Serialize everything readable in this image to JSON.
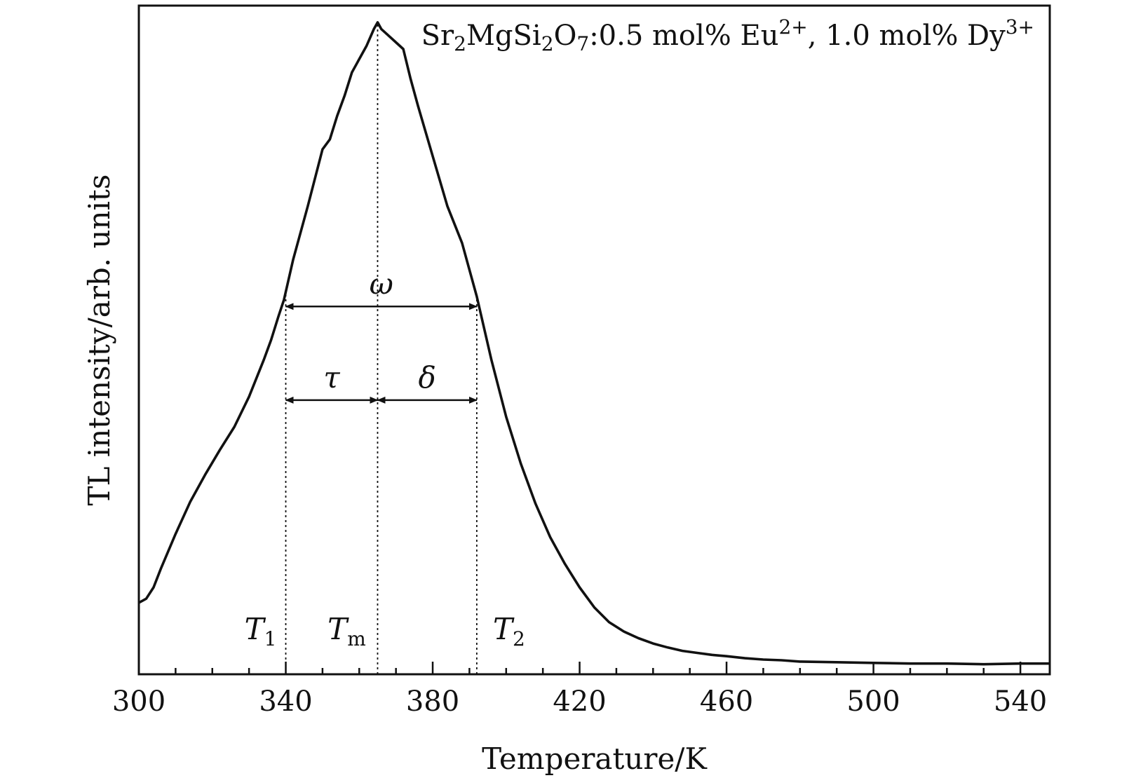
{
  "chart_data": {
    "type": "line",
    "title_parts": [
      "Sr",
      "2",
      "MgSi",
      "2",
      "O",
      "7",
      ":0.5 mol% Eu",
      "2+",
      ", 1.0 mol% Dy",
      "3+"
    ],
    "xlabel": "Temperature/K",
    "ylabel": "TL intensity/arb. units",
    "xlim": [
      300,
      548
    ],
    "ylim": [
      0,
      1.0
    ],
    "xticks": [
      300,
      340,
      380,
      420,
      460,
      500,
      540
    ],
    "minor_step": 10,
    "grid": false,
    "legend": "none",
    "series": [
      {
        "x": [
          300,
          302,
          304,
          306,
          310,
          314,
          318,
          322,
          326,
          330,
          334,
          336,
          338,
          339.5,
          342,
          346,
          350,
          352,
          354,
          356,
          358,
          360,
          362,
          364,
          365,
          366,
          368,
          370,
          372,
          374,
          376,
          380,
          384,
          388,
          392,
          396,
          400,
          404,
          408,
          412,
          416,
          420,
          424,
          428,
          432,
          436,
          440,
          444,
          448,
          452,
          456,
          460,
          465,
          470,
          475,
          480,
          490,
          500,
          510,
          520,
          530,
          540,
          548
        ],
        "y": [
          0.107,
          0.113,
          0.13,
          0.158,
          0.21,
          0.258,
          0.298,
          0.335,
          0.37,
          0.415,
          0.47,
          0.5,
          0.535,
          0.56,
          0.62,
          0.7,
          0.785,
          0.8,
          0.835,
          0.865,
          0.9,
          0.92,
          0.94,
          0.965,
          0.975,
          0.965,
          0.955,
          0.945,
          0.935,
          0.89,
          0.85,
          0.775,
          0.7,
          0.645,
          0.565,
          0.47,
          0.385,
          0.315,
          0.255,
          0.205,
          0.165,
          0.13,
          0.1,
          0.078,
          0.064,
          0.054,
          0.046,
          0.04,
          0.035,
          0.032,
          0.029,
          0.027,
          0.024,
          0.022,
          0.021,
          0.019,
          0.018,
          0.017,
          0.016,
          0.016,
          0.015,
          0.016,
          0.016
        ]
      }
    ],
    "annotations": {
      "omega": {
        "symbol": "ω",
        "x_from": 340,
        "x_to": 392,
        "level": 0.55
      },
      "tau": {
        "symbol": "τ",
        "x_from": 340,
        "x_to": 365,
        "level": 0.41
      },
      "delta": {
        "symbol": "δ",
        "x_from": 365,
        "x_to": 392,
        "level": 0.41
      },
      "markers": [
        {
          "symbol": "T",
          "sub": "1",
          "x": 340
        },
        {
          "symbol": "T",
          "sub": "m",
          "x": 365
        },
        {
          "symbol": "T",
          "sub": "2",
          "x": 392
        }
      ]
    }
  }
}
